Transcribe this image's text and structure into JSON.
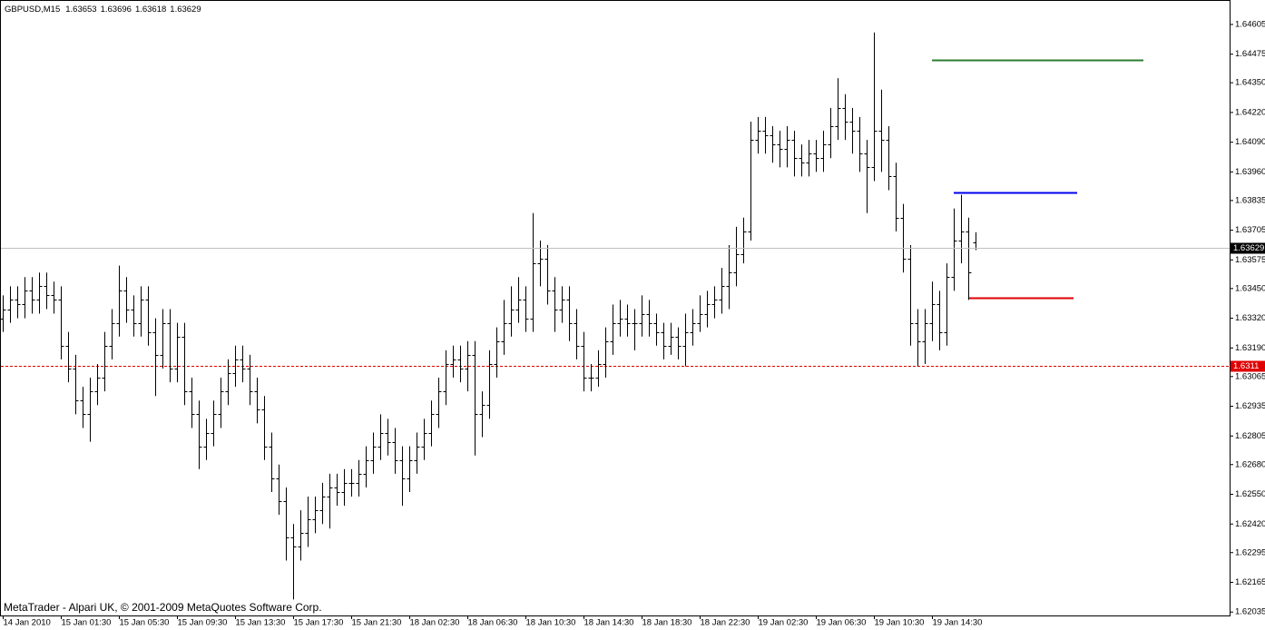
{
  "chart_data": {
    "type": "ohlc",
    "symbol": "GBPUSD,M15",
    "watermark": "MetaTrader - Alpari UK, © 2001-2009 MetaQuotes Software Corp.",
    "color": "#000000",
    "categories": [
      "14 Jan 2010",
      null,
      null,
      null,
      null,
      null,
      null,
      null,
      "15 Jan 01:30",
      null,
      null,
      null,
      null,
      null,
      null,
      null,
      "15 Jan 05:30",
      null,
      null,
      null,
      null,
      null,
      null,
      null,
      "15 Jan 09:30",
      null,
      null,
      null,
      null,
      null,
      null,
      null,
      "15 Jan 13:30",
      null,
      null,
      null,
      null,
      null,
      null,
      null,
      "15 Jan 17:30",
      null,
      null,
      null,
      null,
      null,
      null,
      null,
      "15 Jan 21:30",
      null,
      null,
      null,
      null,
      null,
      null,
      null,
      "18 Jan 02:30",
      null,
      null,
      null,
      null,
      null,
      null,
      null,
      "18 Jan 06:30",
      null,
      null,
      null,
      null,
      null,
      null,
      null,
      "18 Jan 10:30",
      null,
      null,
      null,
      null,
      null,
      null,
      null,
      "18 Jan 14:30",
      null,
      null,
      null,
      null,
      null,
      null,
      null,
      "18 Jan 18:30",
      null,
      null,
      null,
      null,
      null,
      null,
      null,
      "18 Jan 22:30",
      null,
      null,
      null,
      null,
      null,
      null,
      null,
      "19 Jan 02:30",
      null,
      null,
      null,
      null,
      null,
      null,
      null,
      "19 Jan 06:30",
      null,
      null,
      null,
      null,
      null,
      null,
      null,
      "19 Jan 10:30",
      null,
      null,
      null,
      null,
      null,
      null,
      null,
      "19 Jan 14:30",
      null,
      null,
      null,
      null,
      null,
      null
    ],
    "open": [
      1.6332,
      1.6336,
      1.634,
      1.6338,
      1.6344,
      1.634,
      1.6346,
      1.6342,
      1.634,
      1.632,
      1.631,
      1.6296,
      1.629,
      1.63,
      1.6306,
      1.632,
      1.633,
      1.6344,
      1.6336,
      1.633,
      1.634,
      1.6326,
      1.6316,
      1.633,
      1.631,
      1.6324,
      1.63,
      1.629,
      1.6276,
      1.6282,
      1.629,
      1.63,
      1.6308,
      1.6314,
      1.631,
      1.63,
      1.6292,
      1.6276,
      1.6262,
      1.6252,
      1.6236,
      1.6232,
      1.6238,
      1.6244,
      1.6248,
      1.6254,
      1.6258,
      1.6256,
      1.626,
      1.626,
      1.6264,
      1.627,
      1.6276,
      1.6282,
      1.6278,
      1.627,
      1.6262,
      1.627,
      1.6276,
      1.6282,
      1.629,
      1.63,
      1.6312,
      1.6314,
      1.631,
      1.6316,
      1.629,
      1.6294,
      1.6312,
      1.6322,
      1.633,
      1.6336,
      1.634,
      1.6332,
      1.6356,
      1.6358,
      1.6344,
      1.6336,
      1.634,
      1.633,
      1.632,
      1.6306,
      1.6306,
      1.6312,
      1.6322,
      1.633,
      1.6332,
      1.633,
      1.633,
      1.6334,
      1.633,
      1.6326,
      1.632,
      1.6324,
      1.632,
      1.6326,
      1.633,
      1.6334,
      1.6338,
      1.634,
      1.6346,
      1.6352,
      1.636,
      1.637,
      1.641,
      1.6414,
      1.6412,
      1.6408,
      1.6406,
      1.641,
      1.6402,
      1.64,
      1.6404,
      1.6402,
      1.6408,
      1.6416,
      1.6424,
      1.6418,
      1.6414,
      1.6404,
      1.6398,
      1.6414,
      1.641,
      1.6394,
      1.6376,
      1.6358,
      1.633,
      1.6322,
      1.633,
      1.6338,
      1.6326,
      1.635,
      1.6366,
      1.637,
      1.63653
    ],
    "high": [
      1.6342,
      1.6346,
      1.6346,
      1.635,
      1.635,
      1.6352,
      1.6352,
      1.6348,
      1.6346,
      1.6326,
      1.6316,
      1.6302,
      1.6306,
      1.6312,
      1.6326,
      1.6336,
      1.6355,
      1.635,
      1.6342,
      1.6346,
      1.6346,
      1.6332,
      1.6336,
      1.6336,
      1.633,
      1.633,
      1.6306,
      1.6296,
      1.6288,
      1.6296,
      1.6306,
      1.6314,
      1.632,
      1.632,
      1.6316,
      1.6306,
      1.6298,
      1.6282,
      1.6268,
      1.6258,
      1.6242,
      1.6248,
      1.6254,
      1.6254,
      1.626,
      1.6264,
      1.6264,
      1.6266,
      1.6266,
      1.627,
      1.6276,
      1.6282,
      1.629,
      1.6288,
      1.6284,
      1.6276,
      1.6276,
      1.6282,
      1.6288,
      1.6296,
      1.6306,
      1.6318,
      1.632,
      1.632,
      1.6322,
      1.6322,
      1.63,
      1.6318,
      1.6328,
      1.634,
      1.6346,
      1.635,
      1.6346,
      1.6378,
      1.6366,
      1.6364,
      1.635,
      1.6346,
      1.6346,
      1.6336,
      1.6326,
      1.6312,
      1.6318,
      1.6328,
      1.6338,
      1.634,
      1.6338,
      1.6336,
      1.6342,
      1.634,
      1.6334,
      1.633,
      1.633,
      1.6328,
      1.6334,
      1.6336,
      1.6342,
      1.6344,
      1.6346,
      1.6354,
      1.6364,
      1.6372,
      1.6376,
      1.6418,
      1.642,
      1.642,
      1.6416,
      1.6414,
      1.6416,
      1.6414,
      1.6408,
      1.641,
      1.641,
      1.6414,
      1.6424,
      1.6437,
      1.643,
      1.6424,
      1.642,
      1.641,
      1.6457,
      1.6432,
      1.6416,
      1.64,
      1.6382,
      1.6364,
      1.6336,
      1.6336,
      1.6348,
      1.6344,
      1.6356,
      1.638,
      1.6386,
      1.6376,
      1.63696
    ],
    "low": [
      1.6326,
      1.633,
      1.6332,
      1.6332,
      1.6334,
      1.6334,
      1.6336,
      1.6334,
      1.6314,
      1.6304,
      1.629,
      1.6284,
      1.6278,
      1.6294,
      1.63,
      1.6314,
      1.6324,
      1.633,
      1.6324,
      1.6324,
      1.632,
      1.6298,
      1.631,
      1.6304,
      1.6304,
      1.6294,
      1.6284,
      1.6266,
      1.627,
      1.6276,
      1.6284,
      1.6294,
      1.6302,
      1.6304,
      1.6294,
      1.6286,
      1.627,
      1.6256,
      1.6246,
      1.6226,
      1.6209,
      1.6226,
      1.6232,
      1.6238,
      1.6242,
      1.624,
      1.625,
      1.625,
      1.6254,
      1.6254,
      1.6258,
      1.6264,
      1.627,
      1.6272,
      1.6264,
      1.625,
      1.6256,
      1.6264,
      1.627,
      1.6276,
      1.6284,
      1.6294,
      1.6306,
      1.6304,
      1.63,
      1.6272,
      1.628,
      1.6288,
      1.6306,
      1.6316,
      1.6324,
      1.633,
      1.6326,
      1.6326,
      1.6346,
      1.6338,
      1.6326,
      1.633,
      1.6322,
      1.6314,
      1.63,
      1.63,
      1.6302,
      1.6306,
      1.6316,
      1.6324,
      1.6324,
      1.6318,
      1.6324,
      1.6324,
      1.632,
      1.6314,
      1.6316,
      1.6314,
      1.6311,
      1.632,
      1.6326,
      1.6328,
      1.6332,
      1.6334,
      1.6336,
      1.6346,
      1.6356,
      1.6366,
      1.6404,
      1.6404,
      1.64,
      1.6398,
      1.6398,
      1.6394,
      1.6394,
      1.6394,
      1.6396,
      1.6396,
      1.6402,
      1.641,
      1.641,
      1.6404,
      1.6396,
      1.6378,
      1.6392,
      1.6396,
      1.6388,
      1.637,
      1.6352,
      1.632,
      1.6311,
      1.6312,
      1.6322,
      1.6318,
      1.632,
      1.6344,
      1.6356,
      1.634,
      1.63618
    ],
    "close": [
      1.6336,
      1.634,
      1.6338,
      1.6344,
      1.634,
      1.6346,
      1.6342,
      1.634,
      1.632,
      1.631,
      1.6296,
      1.629,
      1.63,
      1.6306,
      1.632,
      1.633,
      1.6344,
      1.6336,
      1.633,
      1.634,
      1.6326,
      1.6316,
      1.633,
      1.631,
      1.6324,
      1.63,
      1.629,
      1.6276,
      1.6282,
      1.629,
      1.63,
      1.6308,
      1.6314,
      1.631,
      1.63,
      1.6292,
      1.6276,
      1.6262,
      1.6252,
      1.6236,
      1.6232,
      1.6238,
      1.6244,
      1.6248,
      1.6254,
      1.6258,
      1.6256,
      1.626,
      1.626,
      1.6264,
      1.627,
      1.6276,
      1.6282,
      1.6278,
      1.627,
      1.6262,
      1.627,
      1.6276,
      1.6282,
      1.629,
      1.63,
      1.6312,
      1.6314,
      1.631,
      1.6316,
      1.629,
      1.6294,
      1.6312,
      1.6322,
      1.633,
      1.6336,
      1.634,
      1.6332,
      1.6356,
      1.6358,
      1.6344,
      1.6336,
      1.634,
      1.633,
      1.632,
      1.6306,
      1.6306,
      1.6312,
      1.6322,
      1.633,
      1.6332,
      1.633,
      1.633,
      1.6334,
      1.633,
      1.6326,
      1.632,
      1.6324,
      1.632,
      1.6326,
      1.633,
      1.6334,
      1.6338,
      1.634,
      1.6346,
      1.6352,
      1.636,
      1.637,
      1.641,
      1.6414,
      1.6412,
      1.6408,
      1.6406,
      1.641,
      1.6402,
      1.64,
      1.6404,
      1.6402,
      1.6408,
      1.6416,
      1.6424,
      1.6418,
      1.6414,
      1.6404,
      1.6398,
      1.6414,
      1.641,
      1.6394,
      1.6376,
      1.6358,
      1.633,
      1.6322,
      1.633,
      1.6338,
      1.6326,
      1.635,
      1.6366,
      1.637,
      1.6352,
      1.63629
    ],
    "ylim": [
      1.6202,
      1.647
    ],
    "yticks": [
      1.64605,
      1.64475,
      {
        "value": 1.6435,
        "label": "1.64350"
      },
      {
        "value": 1.6422,
        "label": "1.64220"
      },
      {
        "value": 1.6409,
        "label": "1.64090"
      },
      {
        "value": 1.6396,
        "label": "1.63960"
      },
      1.63835,
      1.63705,
      1.63575,
      {
        "value": 1.6345,
        "label": "1.63450"
      },
      {
        "value": 1.6332,
        "label": "1.63320"
      },
      {
        "value": 1.6319,
        "label": "1.63190"
      },
      1.63065,
      1.62935,
      1.62805,
      {
        "value": 1.6268,
        "label": "1.62680"
      },
      {
        "value": 1.6255,
        "label": "1.62550"
      },
      {
        "value": 1.6242,
        "label": "1.62420"
      },
      1.62295,
      1.62165,
      1.62035
    ],
    "levels": [
      {
        "value": 1.6311,
        "color": "#e00000",
        "style": "dashed"
      },
      {
        "value": 1.6445,
        "color": "#2e7d32",
        "style": "solid"
      },
      {
        "value": 1.6387,
        "color": "#0000ee",
        "style": "solid"
      },
      {
        "value": 1.6341,
        "color": "#e00000",
        "style": "solid"
      }
    ]
  }
}
